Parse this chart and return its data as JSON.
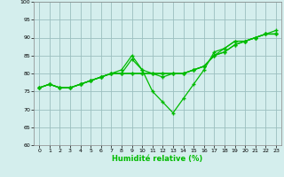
{
  "title": "",
  "xlabel": "Humidité relative (%)",
  "ylabel": "",
  "background_color": "#d4eeed",
  "grid_color": "#9bbfbf",
  "line_color": "#00bb00",
  "xlim": [
    -0.5,
    23.5
  ],
  "ylim": [
    60,
    100
  ],
  "xticks": [
    0,
    1,
    2,
    3,
    4,
    5,
    6,
    7,
    8,
    9,
    10,
    11,
    12,
    13,
    14,
    15,
    16,
    17,
    18,
    19,
    20,
    21,
    22,
    23
  ],
  "yticks": [
    60,
    65,
    70,
    75,
    80,
    85,
    90,
    95,
    100
  ],
  "series": [
    [
      76,
      77,
      76,
      76,
      77,
      78,
      79,
      80,
      81,
      85,
      81,
      75,
      72,
      69,
      73,
      77,
      81,
      86,
      87,
      89,
      89,
      90,
      91,
      92
    ],
    [
      76,
      77,
      76,
      76,
      77,
      78,
      79,
      80,
      80,
      84,
      81,
      80,
      79,
      80,
      80,
      81,
      82,
      85,
      86,
      88,
      89,
      90,
      91,
      91
    ],
    [
      76,
      77,
      76,
      76,
      77,
      78,
      79,
      80,
      80,
      80,
      80,
      80,
      80,
      80,
      80,
      81,
      82,
      85,
      87,
      89,
      89,
      90,
      91,
      91
    ],
    [
      76,
      77,
      76,
      76,
      77,
      78,
      79,
      80,
      80,
      80,
      80,
      80,
      80,
      80,
      80,
      81,
      82,
      85,
      86,
      88,
      89,
      90,
      91,
      91
    ]
  ]
}
